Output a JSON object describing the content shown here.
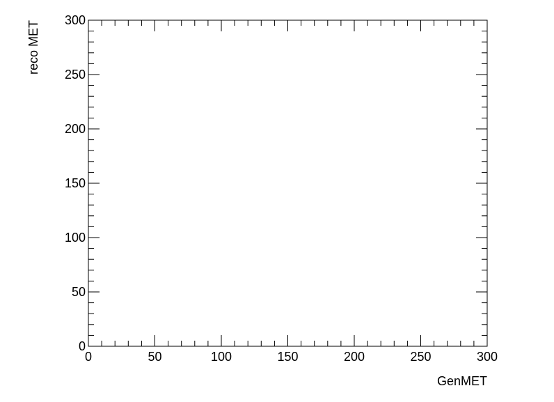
{
  "chart_data": {
    "type": "scatter",
    "title": "",
    "xlabel": "GenMET",
    "ylabel": "reco MET",
    "xlim": [
      0,
      300
    ],
    "ylim": [
      0,
      300
    ],
    "x_major_ticks": [
      0,
      50,
      100,
      150,
      200,
      250,
      300
    ],
    "y_major_ticks": [
      0,
      50,
      100,
      150,
      200,
      250,
      300
    ],
    "x_tick_labels": [
      "0",
      "50",
      "100",
      "150",
      "200",
      "250",
      "300"
    ],
    "y_tick_labels": [
      "0",
      "50",
      "100",
      "150",
      "200",
      "250",
      "300"
    ],
    "minor_tick_step": 10,
    "grid": false,
    "legend": "none",
    "points": [],
    "colors": {
      "axis": "#000000",
      "background": "#ffffff"
    }
  }
}
